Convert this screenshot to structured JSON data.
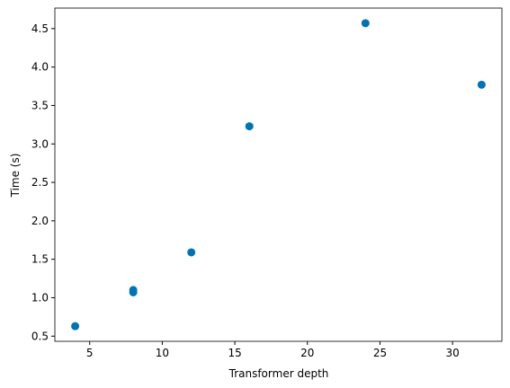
{
  "chart_data": {
    "type": "scatter",
    "x_label": "Transformer depth",
    "y_label": "Time (s)",
    "series": [
      {
        "color": "#0173b2",
        "x": [
          4,
          8,
          8,
          12,
          16,
          24,
          32
        ],
        "values": [
          0.63,
          1.1,
          1.07,
          1.59,
          3.23,
          4.57,
          3.77
        ]
      }
    ],
    "xlim": [
      2.6,
      33.4
    ],
    "xticks": [
      5,
      10,
      15,
      20,
      25,
      30
    ],
    "ylim": [
      0.433,
      4.767
    ],
    "yticks": [
      0.5,
      {
        "value": 1.0,
        "label": "1.0"
      },
      1.5,
      {
        "value": 2.0,
        "label": "2.0"
      },
      2.5,
      {
        "value": 3.0,
        "label": "3.0"
      },
      3.5,
      {
        "value": 4.0,
        "label": "4.0"
      },
      4.5
    ],
    "grid": false
  }
}
